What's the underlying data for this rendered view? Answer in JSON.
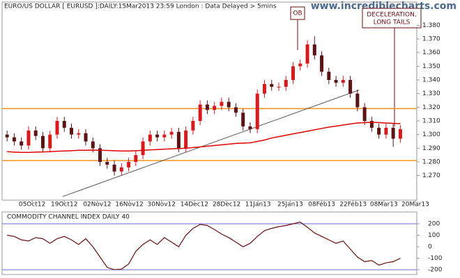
{
  "header": {
    "title": "EURO/US DOLLAR [ EURUSD ]:DAILY:15Mar2013 23:59 London : Data Delayed > 5mins",
    "watermark": "www.incrediblecharts.com"
  },
  "chart_data": [
    {
      "type": "candlestick",
      "xlim": [
        -0.7,
        57.3
      ],
      "xticks": [
        {
          "value": 3.5,
          "label": "05Oct12"
        },
        {
          "value": 8.0,
          "label": "19Oct12"
        },
        {
          "value": 12.6,
          "label": "02Nov12"
        },
        {
          "value": 17.1,
          "label": "16Nov12"
        },
        {
          "value": 21.6,
          "label": "30Nov12"
        },
        {
          "value": 26.2,
          "label": "14Dec12"
        },
        {
          "value": 30.7,
          "label": "28Dec12"
        },
        {
          "value": 35.1,
          "label": "11Jan13"
        },
        {
          "value": 39.6,
          "label": "25Jan13"
        },
        {
          "value": 44.0,
          "label": "08Feb13"
        },
        {
          "value": 48.4,
          "label": "22Feb13"
        },
        {
          "value": 52.7,
          "label": "08Mar13"
        },
        {
          "value": 57.1,
          "label": "20Mar13"
        }
      ],
      "ylim": [
        1.252,
        1.397
      ],
      "yticks": [
        {
          "value": 1.27,
          "label": "1.270"
        },
        {
          "value": 1.28,
          "label": "1.280"
        },
        {
          "value": 1.29,
          "label": "1.290"
        },
        {
          "value": 1.3,
          "label": "1.300"
        },
        {
          "value": 1.31,
          "label": "1.310"
        },
        {
          "value": 1.32,
          "label": "1.320"
        },
        {
          "value": 1.33,
          "label": "1.330"
        },
        {
          "value": 1.34,
          "label": "1.340"
        },
        {
          "value": 1.35,
          "label": "1.350"
        },
        {
          "value": 1.36,
          "label": "1.360"
        },
        {
          "value": 1.37,
          "label": "1.370"
        },
        {
          "value": 1.38,
          "label": "1.380"
        }
      ],
      "up_color": "#d7191c",
      "down_color": "#5b1414",
      "open": [
        1.3,
        1.298,
        1.295,
        1.292,
        1.303,
        1.299,
        1.29,
        1.3,
        1.31,
        1.305,
        1.3,
        1.301,
        1.295,
        1.29,
        1.28,
        1.278,
        1.273,
        1.276,
        1.28,
        1.285,
        1.295,
        1.3,
        1.298,
        1.3,
        1.302,
        1.29,
        1.303,
        1.31,
        1.322,
        1.318,
        1.321,
        1.324,
        1.32,
        1.316,
        1.306,
        1.304,
        1.33,
        1.337,
        1.335,
        1.335,
        1.34,
        1.35,
        1.352,
        1.366,
        1.358,
        1.346,
        1.34,
        1.338,
        1.34,
        1.33,
        1.32,
        1.31,
        1.305,
        1.3,
        1.305,
        1.297
      ],
      "high": [
        1.303,
        1.301,
        1.298,
        1.306,
        1.306,
        1.302,
        1.303,
        1.313,
        1.313,
        1.308,
        1.304,
        1.304,
        1.298,
        1.293,
        1.283,
        1.281,
        1.279,
        1.283,
        1.288,
        1.298,
        1.303,
        1.303,
        1.303,
        1.305,
        1.305,
        1.306,
        1.313,
        1.325,
        1.325,
        1.324,
        1.327,
        1.327,
        1.323,
        1.319,
        1.309,
        1.333,
        1.34,
        1.34,
        1.338,
        1.343,
        1.353,
        1.355,
        1.369,
        1.372,
        1.361,
        1.349,
        1.343,
        1.343,
        1.343,
        1.333,
        1.323,
        1.313,
        1.308,
        1.308,
        1.308,
        1.307
      ],
      "low": [
        1.295,
        1.292,
        1.289,
        1.289,
        1.296,
        1.287,
        1.287,
        1.297,
        1.302,
        1.297,
        1.297,
        1.292,
        1.287,
        1.277,
        1.275,
        1.27,
        1.27,
        1.273,
        1.277,
        1.282,
        1.292,
        1.295,
        1.295,
        1.297,
        1.287,
        1.287,
        1.3,
        1.307,
        1.315,
        1.315,
        1.318,
        1.317,
        1.313,
        1.303,
        1.301,
        1.301,
        1.327,
        1.332,
        1.332,
        1.332,
        1.337,
        1.347,
        1.349,
        1.355,
        1.343,
        1.337,
        1.335,
        1.335,
        1.327,
        1.317,
        1.307,
        1.302,
        1.297,
        1.297,
        1.291,
        1.294
      ],
      "close": [
        1.298,
        1.295,
        1.292,
        1.303,
        1.299,
        1.29,
        1.3,
        1.31,
        1.305,
        1.3,
        1.301,
        1.295,
        1.29,
        1.28,
        1.278,
        1.273,
        1.276,
        1.28,
        1.285,
        1.295,
        1.3,
        1.298,
        1.3,
        1.302,
        1.29,
        1.303,
        1.31,
        1.322,
        1.318,
        1.321,
        1.324,
        1.32,
        1.316,
        1.306,
        1.304,
        1.33,
        1.337,
        1.335,
        1.335,
        1.34,
        1.35,
        1.352,
        1.366,
        1.358,
        1.346,
        1.34,
        1.338,
        1.34,
        1.33,
        1.32,
        1.31,
        1.305,
        1.3,
        1.305,
        1.297,
        1.304
      ],
      "moving_average": {
        "color": "#e00000",
        "values": [
          1.2875,
          1.2872,
          1.287,
          1.287,
          1.2872,
          1.2873,
          1.2875,
          1.2878,
          1.288,
          1.2882,
          1.2885,
          1.2885,
          1.2886,
          1.2885,
          1.2884,
          1.2882,
          1.288,
          1.288,
          1.2882,
          1.2885,
          1.2888,
          1.289,
          1.2893,
          1.2896,
          1.2898,
          1.29,
          1.2905,
          1.291,
          1.2915,
          1.292,
          1.2925,
          1.293,
          1.2935,
          1.2938,
          1.294,
          1.295,
          1.296,
          1.2975,
          1.2985,
          1.2995,
          1.3005,
          1.3015,
          1.3025,
          1.3035,
          1.3045,
          1.3055,
          1.3062,
          1.307,
          1.3078,
          1.3085,
          1.3088,
          1.309,
          1.3088,
          1.3085,
          1.3082,
          1.308
        ]
      },
      "hlines": {
        "color": "#f7941d",
        "values": [
          1.319,
          1.281
        ]
      },
      "trendline": {
        "color": "#555555",
        "x": [
          7.8,
          49.2
        ],
        "y": [
          1.2547,
          1.3326
        ]
      },
      "annotations": [
        {
          "text": "OB"
        },
        {
          "text": [
            "DECELERATION,",
            "LONG TAILS"
          ]
        }
      ]
    },
    {
      "type": "line",
      "title": "COMMODITY CHANNEL INDEX DAILY 40",
      "color": "#6b0d0d",
      "xlim": [
        -0.7,
        57.3
      ],
      "ylim": [
        -242,
        303
      ],
      "yticks": [
        200,
        100,
        0,
        -100,
        -200
      ],
      "levels": {
        "color": "#6a6ad8",
        "values": [
          200,
          -200
        ]
      },
      "values": [
        100,
        90,
        60,
        50,
        80,
        70,
        30,
        70,
        90,
        60,
        20,
        70,
        0,
        -90,
        -180,
        -200,
        -195,
        -150,
        -40,
        20,
        60,
        20,
        80,
        40,
        0,
        100,
        160,
        195,
        185,
        150,
        110,
        80,
        40,
        0,
        30,
        90,
        140,
        160,
        175,
        185,
        200,
        215,
        170,
        120,
        90,
        60,
        30,
        50,
        -20,
        -90,
        -130,
        -120,
        -160,
        -140,
        -130,
        -100
      ]
    }
  ]
}
